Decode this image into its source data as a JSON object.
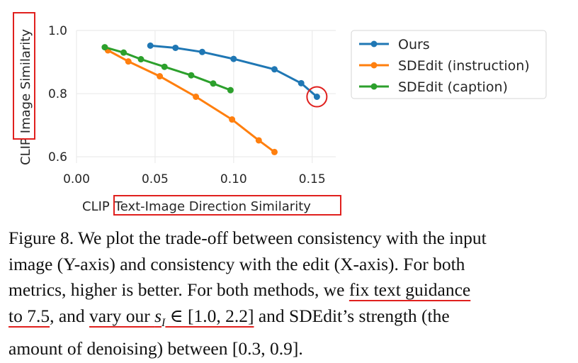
{
  "chart_data": {
    "type": "line",
    "xlabel_prefix": "CLIP",
    "xlabel_highlight": "Text-Image Direction Similarity",
    "ylabel_prefix": "CLIP",
    "ylabel_highlight": "Image Similarity",
    "xlim": [
      0.0,
      0.165
    ],
    "ylim": [
      0.58,
      1.0
    ],
    "xticks": [
      0.0,
      0.05,
      0.1,
      0.15
    ],
    "xtick_labels": [
      "0.00",
      "0.05",
      "0.10",
      "0.15"
    ],
    "yticks": [
      0.6,
      0.8,
      1.0
    ],
    "ytick_labels": [
      "0.6",
      "0.8",
      "1.0"
    ],
    "grid": true,
    "legend_position": "outside-right",
    "series": [
      {
        "name": "Ours",
        "color": "#1f77b4",
        "x": [
          0.047,
          0.063,
          0.08,
          0.1,
          0.126,
          0.143,
          0.153
        ],
        "y": [
          0.952,
          0.945,
          0.932,
          0.91,
          0.877,
          0.833,
          0.79
        ]
      },
      {
        "name": "SDEdit (instruction)",
        "color": "#ff7f0e",
        "x": [
          0.02,
          0.033,
          0.053,
          0.076,
          0.099,
          0.116,
          0.126
        ],
        "y": [
          0.937,
          0.902,
          0.855,
          0.79,
          0.718,
          0.652,
          0.615
        ]
      },
      {
        "name": "SDEdit (caption)",
        "color": "#2ca02c",
        "x": [
          0.018,
          0.03,
          0.041,
          0.056,
          0.073,
          0.087,
          0.098
        ],
        "y": [
          0.947,
          0.93,
          0.909,
          0.885,
          0.858,
          0.832,
          0.811
        ]
      }
    ],
    "highlight_point": {
      "series": "Ours",
      "x": 0.153,
      "y": 0.79,
      "color": "#e0201e"
    }
  },
  "caption": {
    "line1": "Figure 8. We plot the trade-off between consistency with the input",
    "line2": "image (Y-axis) and consistency with the edit (X-axis).  For both",
    "line3_a": "metrics, higher is better.  For both methods, we ",
    "line3_ul": "fix text guidance",
    "line4_ul1": "to 7.5",
    "line4_a": ", and ",
    "line4_ul2a": "vary our ",
    "line4_s": "s",
    "line4_sub": "I",
    "line4_ul2b": " ∈ [1.0, 2.2]",
    "line4_b": " and SDEdit’s strength (the",
    "line5": "amount of denoising) between [0.3, 0.9]."
  },
  "colors": {
    "annotation": "#e0201e",
    "grid": "#ebebeb",
    "plot_bg": "#ffffff"
  }
}
